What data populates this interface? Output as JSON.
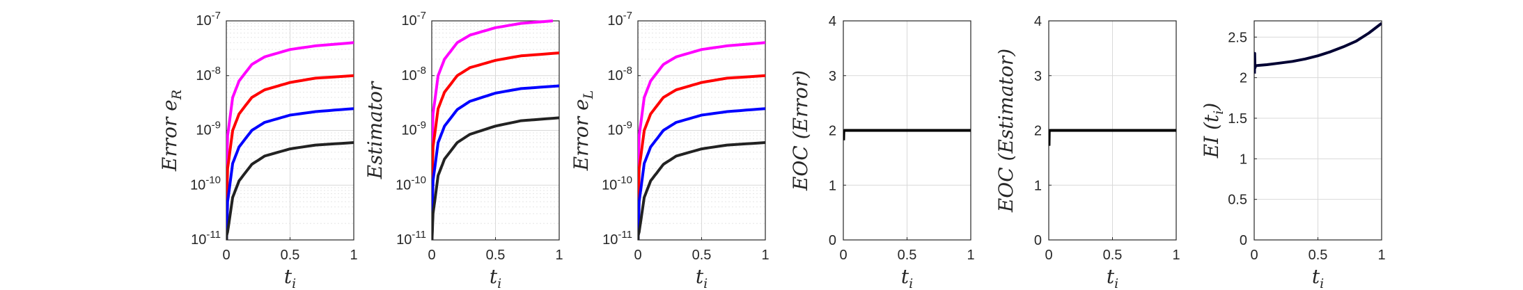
{
  "chart_data": [
    {
      "type": "line",
      "ylabel": "Error e_R",
      "ylabel_base": "Error e",
      "ylabel_sub": "R",
      "xlabel": "t_i",
      "xlabel_base": "t",
      "xlabel_sub": "i",
      "yscale": "log",
      "xlim": [
        0,
        1
      ],
      "ylim": [
        1e-11,
        1e-07
      ],
      "xticks": [
        "0",
        "0.5",
        "1"
      ],
      "yticks": [
        {
          "mant": "10",
          "exp": "-11"
        },
        {
          "mant": "10",
          "exp": "-10"
        },
        {
          "mant": "10",
          "exp": "-9"
        },
        {
          "mant": "10",
          "exp": "-8"
        },
        {
          "mant": "10",
          "exp": "-7"
        }
      ],
      "grid": true,
      "series": [
        {
          "color": "#ff00ff",
          "x": [
            0.002,
            0.01,
            0.05,
            0.1,
            0.2,
            0.3,
            0.5,
            0.7,
            1.0
          ],
          "y": [
            1.6e-10,
            8e-10,
            4e-09,
            8e-09,
            1.6e-08,
            2.2e-08,
            3e-08,
            3.5e-08,
            4e-08
          ]
        },
        {
          "color": "#ff0000",
          "x": [
            0.002,
            0.01,
            0.05,
            0.1,
            0.2,
            0.3,
            0.5,
            0.7,
            1.0
          ],
          "y": [
            4e-11,
            2e-10,
            1e-09,
            2e-09,
            4e-09,
            5.5e-09,
            7.5e-09,
            9e-09,
            1e-08
          ]
        },
        {
          "color": "#0000ff",
          "x": [
            0.002,
            0.01,
            0.05,
            0.1,
            0.2,
            0.3,
            0.5,
            0.7,
            1.0
          ],
          "y": [
            1e-11,
            5e-11,
            2.5e-10,
            5e-10,
            1e-09,
            1.4e-09,
            1.9e-09,
            2.2e-09,
            2.5e-09
          ]
        },
        {
          "color": "#222222",
          "x": [
            0.002,
            0.01,
            0.05,
            0.1,
            0.2,
            0.3,
            0.5,
            0.7,
            1.0
          ],
          "y": [
            1.2e-11,
            1.4e-11,
            6e-11,
            1.2e-10,
            2.4e-10,
            3.4e-10,
            4.6e-10,
            5.4e-10,
            6e-10
          ]
        }
      ]
    },
    {
      "type": "line",
      "ylabel": "Estimator",
      "ylabel_base": "Estimator",
      "ylabel_sub": "",
      "xlabel": "t_i",
      "xlabel_base": "t",
      "xlabel_sub": "i",
      "yscale": "log",
      "xlim": [
        0,
        1
      ],
      "ylim": [
        1e-11,
        1e-07
      ],
      "xticks": [
        "0",
        "0.5",
        "1"
      ],
      "yticks": [
        {
          "mant": "10",
          "exp": "-11"
        },
        {
          "mant": "10",
          "exp": "-10"
        },
        {
          "mant": "10",
          "exp": "-9"
        },
        {
          "mant": "10",
          "exp": "-8"
        },
        {
          "mant": "10",
          "exp": "-7"
        }
      ],
      "grid": true,
      "series": [
        {
          "color": "#ff00ff",
          "x": [
            0.002,
            0.01,
            0.05,
            0.1,
            0.2,
            0.3,
            0.5,
            0.7,
            0.95
          ],
          "y": [
            4e-10,
            2e-09,
            1e-08,
            2e-08,
            4e-08,
            5.5e-08,
            7.5e-08,
            9e-08,
            1e-07
          ]
        },
        {
          "color": "#ff0000",
          "x": [
            0.002,
            0.01,
            0.05,
            0.1,
            0.2,
            0.3,
            0.5,
            0.7,
            1.0
          ],
          "y": [
            1e-10,
            5e-10,
            2.5e-09,
            5e-09,
            1e-08,
            1.4e-08,
            1.9e-08,
            2.3e-08,
            2.6e-08
          ]
        },
        {
          "color": "#0000ff",
          "x": [
            0.002,
            0.01,
            0.05,
            0.1,
            0.2,
            0.3,
            0.5,
            0.7,
            1.0
          ],
          "y": [
            2.5e-11,
            1.2e-10,
            6e-10,
            1.2e-09,
            2.4e-09,
            3.4e-09,
            4.8e-09,
            5.8e-09,
            6.5e-09
          ]
        },
        {
          "color": "#222222",
          "x": [
            0.002,
            0.01,
            0.05,
            0.1,
            0.2,
            0.3,
            0.5,
            0.7,
            1.0
          ],
          "y": [
            1e-11,
            3e-11,
            1.5e-10,
            3e-10,
            6e-10,
            8.5e-10,
            1.2e-09,
            1.5e-09,
            1.7e-09
          ]
        }
      ]
    },
    {
      "type": "line",
      "ylabel": "Error e_L",
      "ylabel_base": "Error e",
      "ylabel_sub": "L",
      "xlabel": "t_i",
      "xlabel_base": "t",
      "xlabel_sub": "i",
      "yscale": "log",
      "xlim": [
        0,
        1
      ],
      "ylim": [
        1e-11,
        1e-07
      ],
      "xticks": [
        "0",
        "0.5",
        "1"
      ],
      "yticks": [
        {
          "mant": "10",
          "exp": "-11"
        },
        {
          "mant": "10",
          "exp": "-10"
        },
        {
          "mant": "10",
          "exp": "-9"
        },
        {
          "mant": "10",
          "exp": "-8"
        },
        {
          "mant": "10",
          "exp": "-7"
        }
      ],
      "grid": true,
      "series": [
        {
          "color": "#ff00ff",
          "x": [
            0.002,
            0.01,
            0.05,
            0.1,
            0.2,
            0.3,
            0.5,
            0.7,
            1.0
          ],
          "y": [
            1.6e-10,
            8e-10,
            4e-09,
            8e-09,
            1.6e-08,
            2.2e-08,
            3e-08,
            3.5e-08,
            4e-08
          ]
        },
        {
          "color": "#ff0000",
          "x": [
            0.002,
            0.01,
            0.05,
            0.1,
            0.2,
            0.3,
            0.5,
            0.7,
            1.0
          ],
          "y": [
            4e-11,
            2e-10,
            1e-09,
            2e-09,
            4e-09,
            5.5e-09,
            7.5e-09,
            9e-09,
            1e-08
          ]
        },
        {
          "color": "#0000ff",
          "x": [
            0.002,
            0.01,
            0.05,
            0.1,
            0.2,
            0.3,
            0.5,
            0.7,
            1.0
          ],
          "y": [
            1e-11,
            5e-11,
            2.5e-10,
            5e-10,
            1e-09,
            1.4e-09,
            1.9e-09,
            2.2e-09,
            2.5e-09
          ]
        },
        {
          "color": "#222222",
          "x": [
            0.002,
            0.01,
            0.05,
            0.1,
            0.2,
            0.3,
            0.5,
            0.7,
            1.0
          ],
          "y": [
            1.2e-11,
            1.4e-11,
            6e-11,
            1.2e-10,
            2.4e-10,
            3.4e-10,
            4.6e-10,
            5.4e-10,
            6e-10
          ]
        }
      ]
    },
    {
      "type": "line",
      "ylabel": "EOC (Error)",
      "ylabel_base": "EOC (Error)",
      "ylabel_sub": "",
      "xlabel": "t_i",
      "xlabel_base": "t",
      "xlabel_sub": "i",
      "yscale": "linear",
      "xlim": [
        0,
        1
      ],
      "ylim": [
        0,
        4
      ],
      "xticks": [
        "0",
        "0.5",
        "1"
      ],
      "yticks": [
        "0",
        "1",
        "2",
        "3",
        "4"
      ],
      "grid": true,
      "series": [
        {
          "color": "#000000",
          "x": [
            0.002,
            0.004,
            0.006,
            0.01,
            0.02,
            0.5,
            1.0
          ],
          "y": [
            1.82,
            1.98,
            1.99,
            2.0,
            2.0,
            2.0,
            2.0
          ]
        }
      ]
    },
    {
      "type": "line",
      "ylabel": "EOC (Estimator)",
      "ylabel_base": "EOC (Estimator)",
      "ylabel_sub": "",
      "xlabel": "t_i",
      "xlabel_base": "t",
      "xlabel_sub": "i",
      "yscale": "linear",
      "xlim": [
        0,
        1
      ],
      "ylim": [
        0,
        4
      ],
      "xticks": [
        "0",
        "0.5",
        "1"
      ],
      "yticks": [
        "0",
        "1",
        "2",
        "3",
        "4"
      ],
      "grid": true,
      "series": [
        {
          "color": "#000000",
          "x": [
            0.002,
            0.004,
            0.006,
            0.01,
            0.02,
            0.5,
            1.0
          ],
          "y": [
            1.72,
            1.98,
            1.99,
            2.0,
            2.0,
            2.0,
            2.0
          ]
        }
      ]
    },
    {
      "type": "line",
      "ylabel": "EI (t_i)",
      "ylabel_base": "EI (t",
      "ylabel_sub": "i",
      "ylabel_tail": ")",
      "xlabel": "t_i",
      "xlabel_base": "t",
      "xlabel_sub": "i",
      "yscale": "linear",
      "xlim": [
        0,
        1
      ],
      "ylim": [
        0,
        2.7
      ],
      "xticks": [
        "0",
        "0.5",
        "1"
      ],
      "yticks": [
        "0",
        "0.5",
        "1",
        "1.5",
        "2",
        "2.5"
      ],
      "grid": true,
      "series": [
        {
          "color": "#000033",
          "x": [
            0.002,
            0.004,
            0.006,
            0.01,
            0.02,
            0.1,
            0.2,
            0.3,
            0.4,
            0.5,
            0.6,
            0.7,
            0.8,
            0.9,
            1.0
          ],
          "y": [
            2.05,
            2.3,
            2.12,
            2.14,
            2.15,
            2.16,
            2.18,
            2.2,
            2.23,
            2.27,
            2.32,
            2.38,
            2.45,
            2.55,
            2.67
          ]
        }
      ]
    }
  ]
}
